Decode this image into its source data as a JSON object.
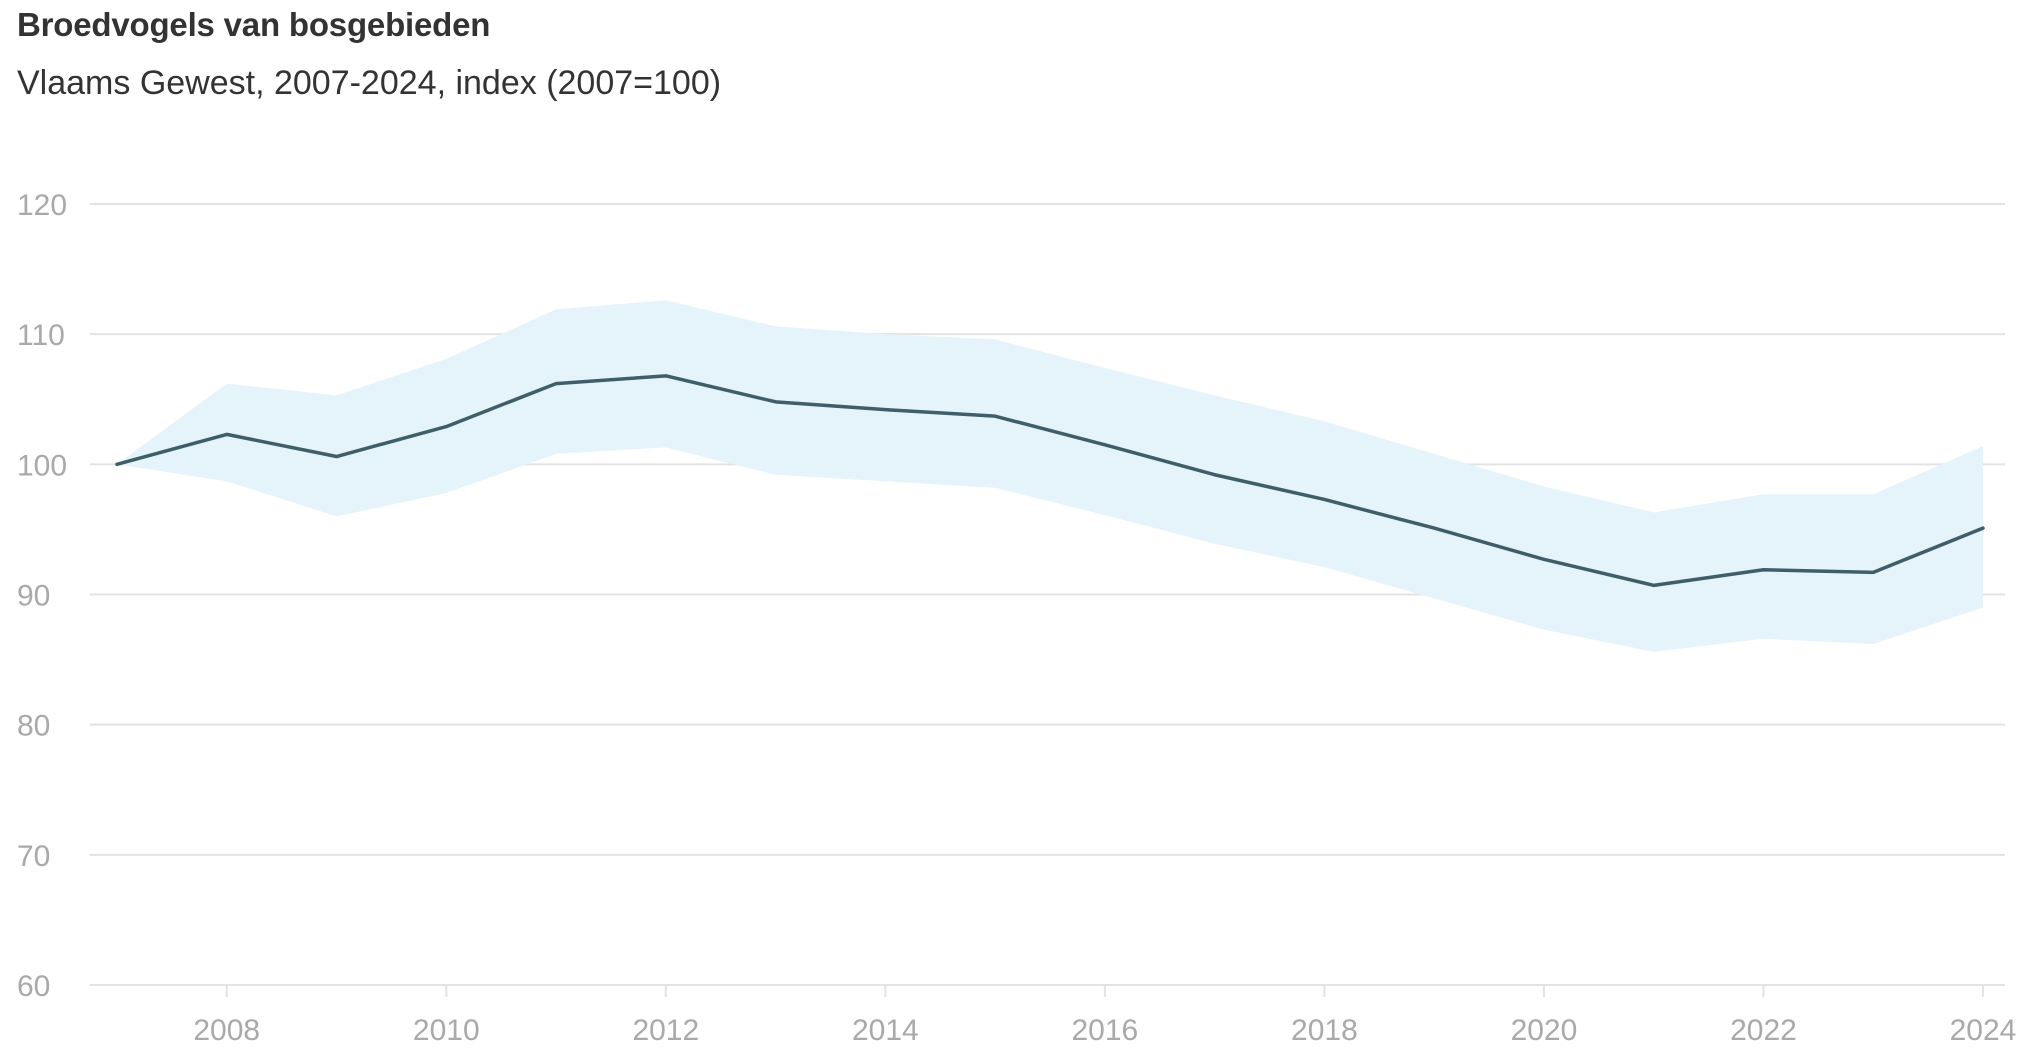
{
  "chart_data": {
    "type": "line",
    "title": "Broedvogels van bosgebieden",
    "subtitle": "Vlaams Gewest, 2007-2024, index (2007=100)",
    "xlabel": "",
    "ylabel": "",
    "x": [
      2007,
      2008,
      2009,
      2010,
      2011,
      2012,
      2013,
      2014,
      2015,
      2016,
      2017,
      2018,
      2019,
      2020,
      2021,
      2022,
      2023,
      2024
    ],
    "series": [
      {
        "name": "",
        "values": [
          100,
          102.3,
          100.6,
          102.9,
          106.2,
          106.8,
          104.8,
          104.2,
          103.7,
          101.5,
          99.2,
          97.3,
          95.1,
          92.7,
          90.7,
          91.9,
          91.7,
          95.1
        ]
      }
    ],
    "band": {
      "lower": [
        100,
        98.7,
        96.0,
        97.8,
        100.8,
        101.3,
        99.2,
        98.7,
        98.2,
        96.1,
        93.9,
        92.1,
        89.7,
        87.3,
        85.6,
        86.6,
        86.2,
        89.0
      ],
      "upper": [
        100,
        106.2,
        105.3,
        108.1,
        111.9,
        112.6,
        110.6,
        110.0,
        109.6,
        107.4,
        105.3,
        103.3,
        100.8,
        98.3,
        96.3,
        97.7,
        97.7,
        101.4
      ]
    },
    "xticks": [
      "2008",
      "2010",
      "2012",
      "2014",
      "2016",
      "2018",
      "2020",
      "2022",
      "2024"
    ],
    "yticks": [
      "60",
      "70",
      "80",
      "90",
      "100",
      "110",
      "120"
    ],
    "xlim": [
      2007,
      2024
    ],
    "ylim": [
      60,
      120
    ],
    "grid": "horizontal",
    "legend": "none",
    "colors": {
      "line": "#3f5e6a",
      "band": "#e5f3fa",
      "grid": "#e3e3e3",
      "ticks": "#a9a9a9",
      "text": "#333333"
    }
  }
}
